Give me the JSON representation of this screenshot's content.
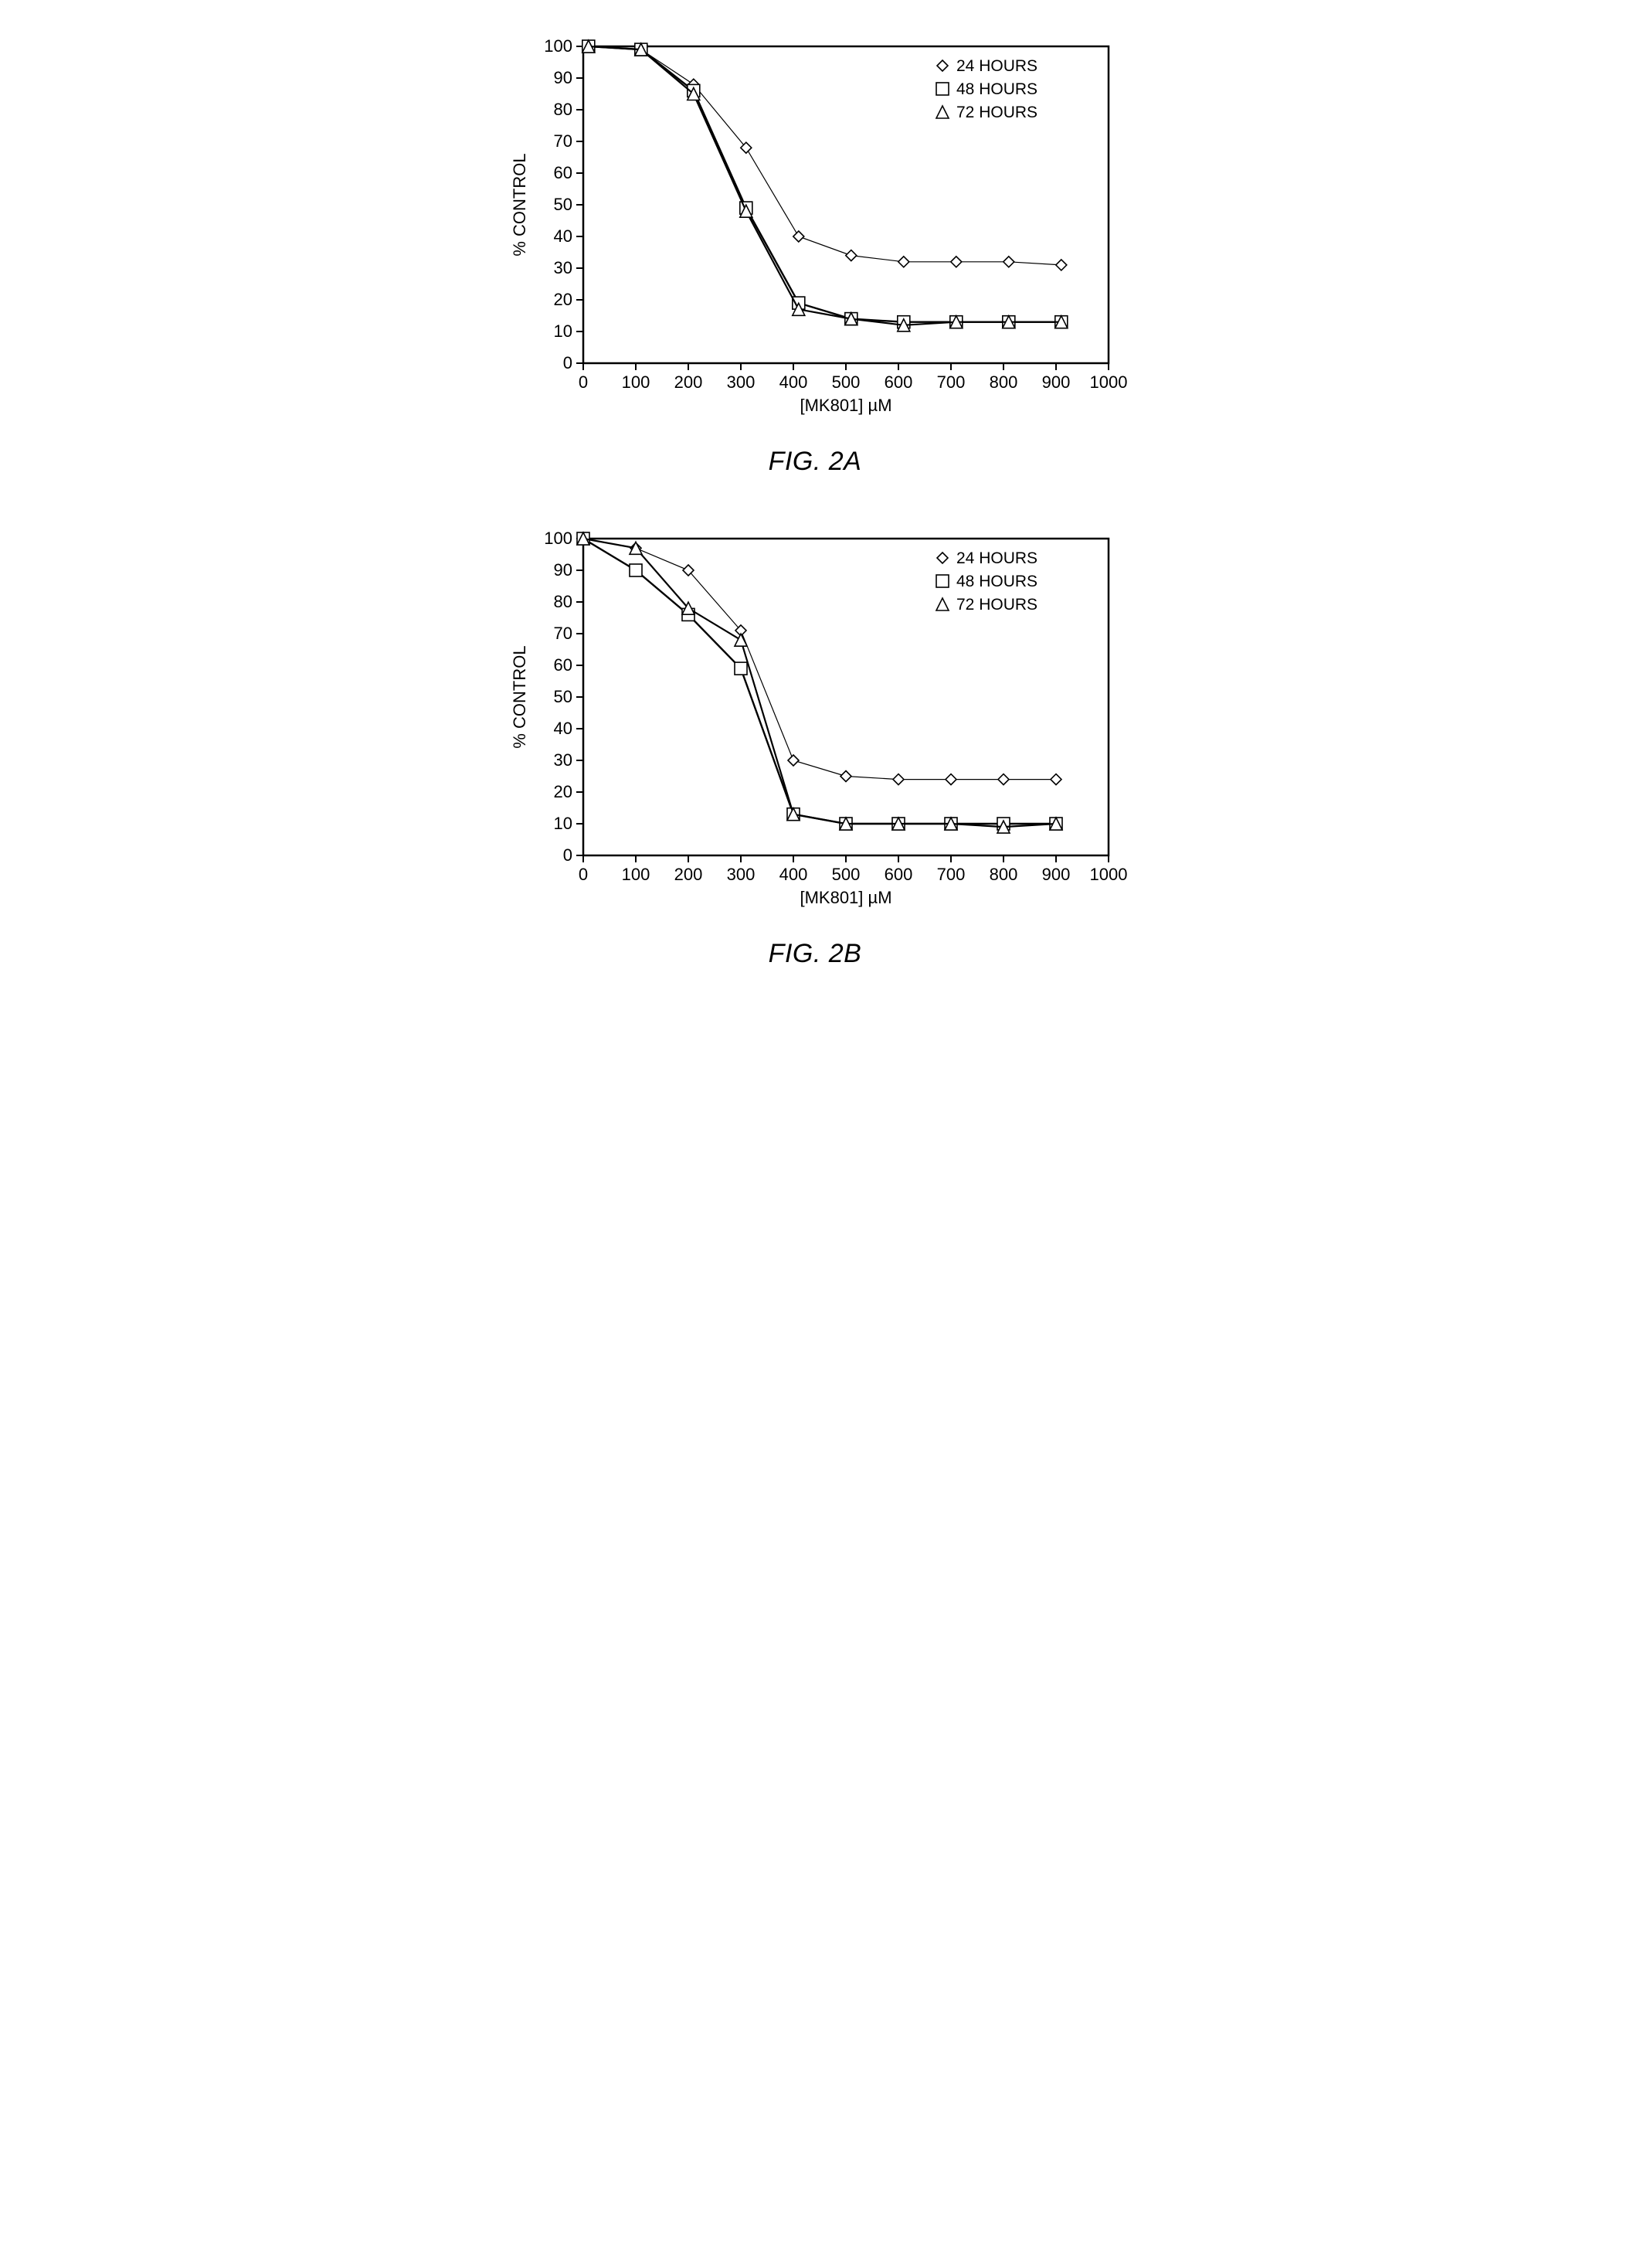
{
  "page": {
    "background_color": "#ffffff"
  },
  "figA": {
    "caption": "FIG. 2A",
    "type": "line",
    "xlabel": "[MK801] µM",
    "ylabel": "% CONTROL",
    "xlim": [
      0,
      1000
    ],
    "ylim": [
      0,
      100
    ],
    "xtick_step": 100,
    "ytick_step": 10,
    "x_points": [
      10,
      110,
      210,
      310,
      410,
      510,
      610,
      710,
      810,
      910
    ],
    "series": [
      {
        "label": "24 HOURS",
        "marker": "diamond",
        "marker_fill": "#ffffff",
        "marker_stroke": "#000000",
        "line_color": "#000000",
        "line_width": 1.2,
        "marker_size": 7,
        "values": [
          100,
          99,
          88,
          68,
          40,
          34,
          32,
          32,
          32,
          31
        ]
      },
      {
        "label": "48 HOURS",
        "marker": "square",
        "marker_fill": "#ffffff",
        "marker_stroke": "#000000",
        "line_color": "#000000",
        "line_width": 2.4,
        "marker_size": 8,
        "values": [
          100,
          99,
          86,
          49,
          19,
          14,
          13,
          13,
          13,
          13
        ]
      },
      {
        "label": "72 HOURS",
        "marker": "triangle",
        "marker_fill": "#ffffff",
        "marker_stroke": "#000000",
        "line_color": "#000000",
        "line_width": 2.2,
        "marker_size": 8,
        "values": [
          100,
          99,
          85,
          48,
          17,
          14,
          12,
          13,
          13,
          13
        ]
      }
    ],
    "legend_position": "top-right",
    "axis_font_size": 22,
    "tick_font_size": 22,
    "legend_font_size": 21,
    "border_color": "#000000",
    "background_color": "#ffffff",
    "border_width": 2.5
  },
  "figB": {
    "caption": "FIG. 2B",
    "type": "line",
    "xlabel": "[MK801] µM",
    "ylabel": "% CONTROL",
    "xlim": [
      0,
      1000
    ],
    "ylim": [
      0,
      100
    ],
    "xtick_step": 100,
    "ytick_step": 10,
    "x_points": [
      0,
      100,
      200,
      300,
      400,
      500,
      600,
      700,
      800,
      900
    ],
    "series": [
      {
        "label": "24 HOURS",
        "marker": "diamond",
        "marker_fill": "#ffffff",
        "marker_stroke": "#000000",
        "line_color": "#000000",
        "line_width": 1.2,
        "marker_size": 7,
        "values": [
          100,
          97,
          90,
          71,
          30,
          25,
          24,
          24,
          24,
          24
        ]
      },
      {
        "label": "48 HOURS",
        "marker": "square",
        "marker_fill": "#ffffff",
        "marker_stroke": "#000000",
        "line_color": "#000000",
        "line_width": 2.4,
        "marker_size": 8,
        "values": [
          100,
          90,
          76,
          59,
          13,
          10,
          10,
          10,
          10,
          10
        ]
      },
      {
        "label": "72 HOURS",
        "marker": "triangle",
        "marker_fill": "#ffffff",
        "marker_stroke": "#000000",
        "line_color": "#000000",
        "line_width": 2.2,
        "marker_size": 8,
        "values": [
          100,
          97,
          78,
          68,
          13,
          10,
          10,
          10,
          9,
          10
        ]
      }
    ],
    "legend_position": "top-right",
    "axis_font_size": 22,
    "tick_font_size": 22,
    "legend_font_size": 21,
    "border_color": "#000000",
    "background_color": "#ffffff",
    "border_width": 2.5
  }
}
